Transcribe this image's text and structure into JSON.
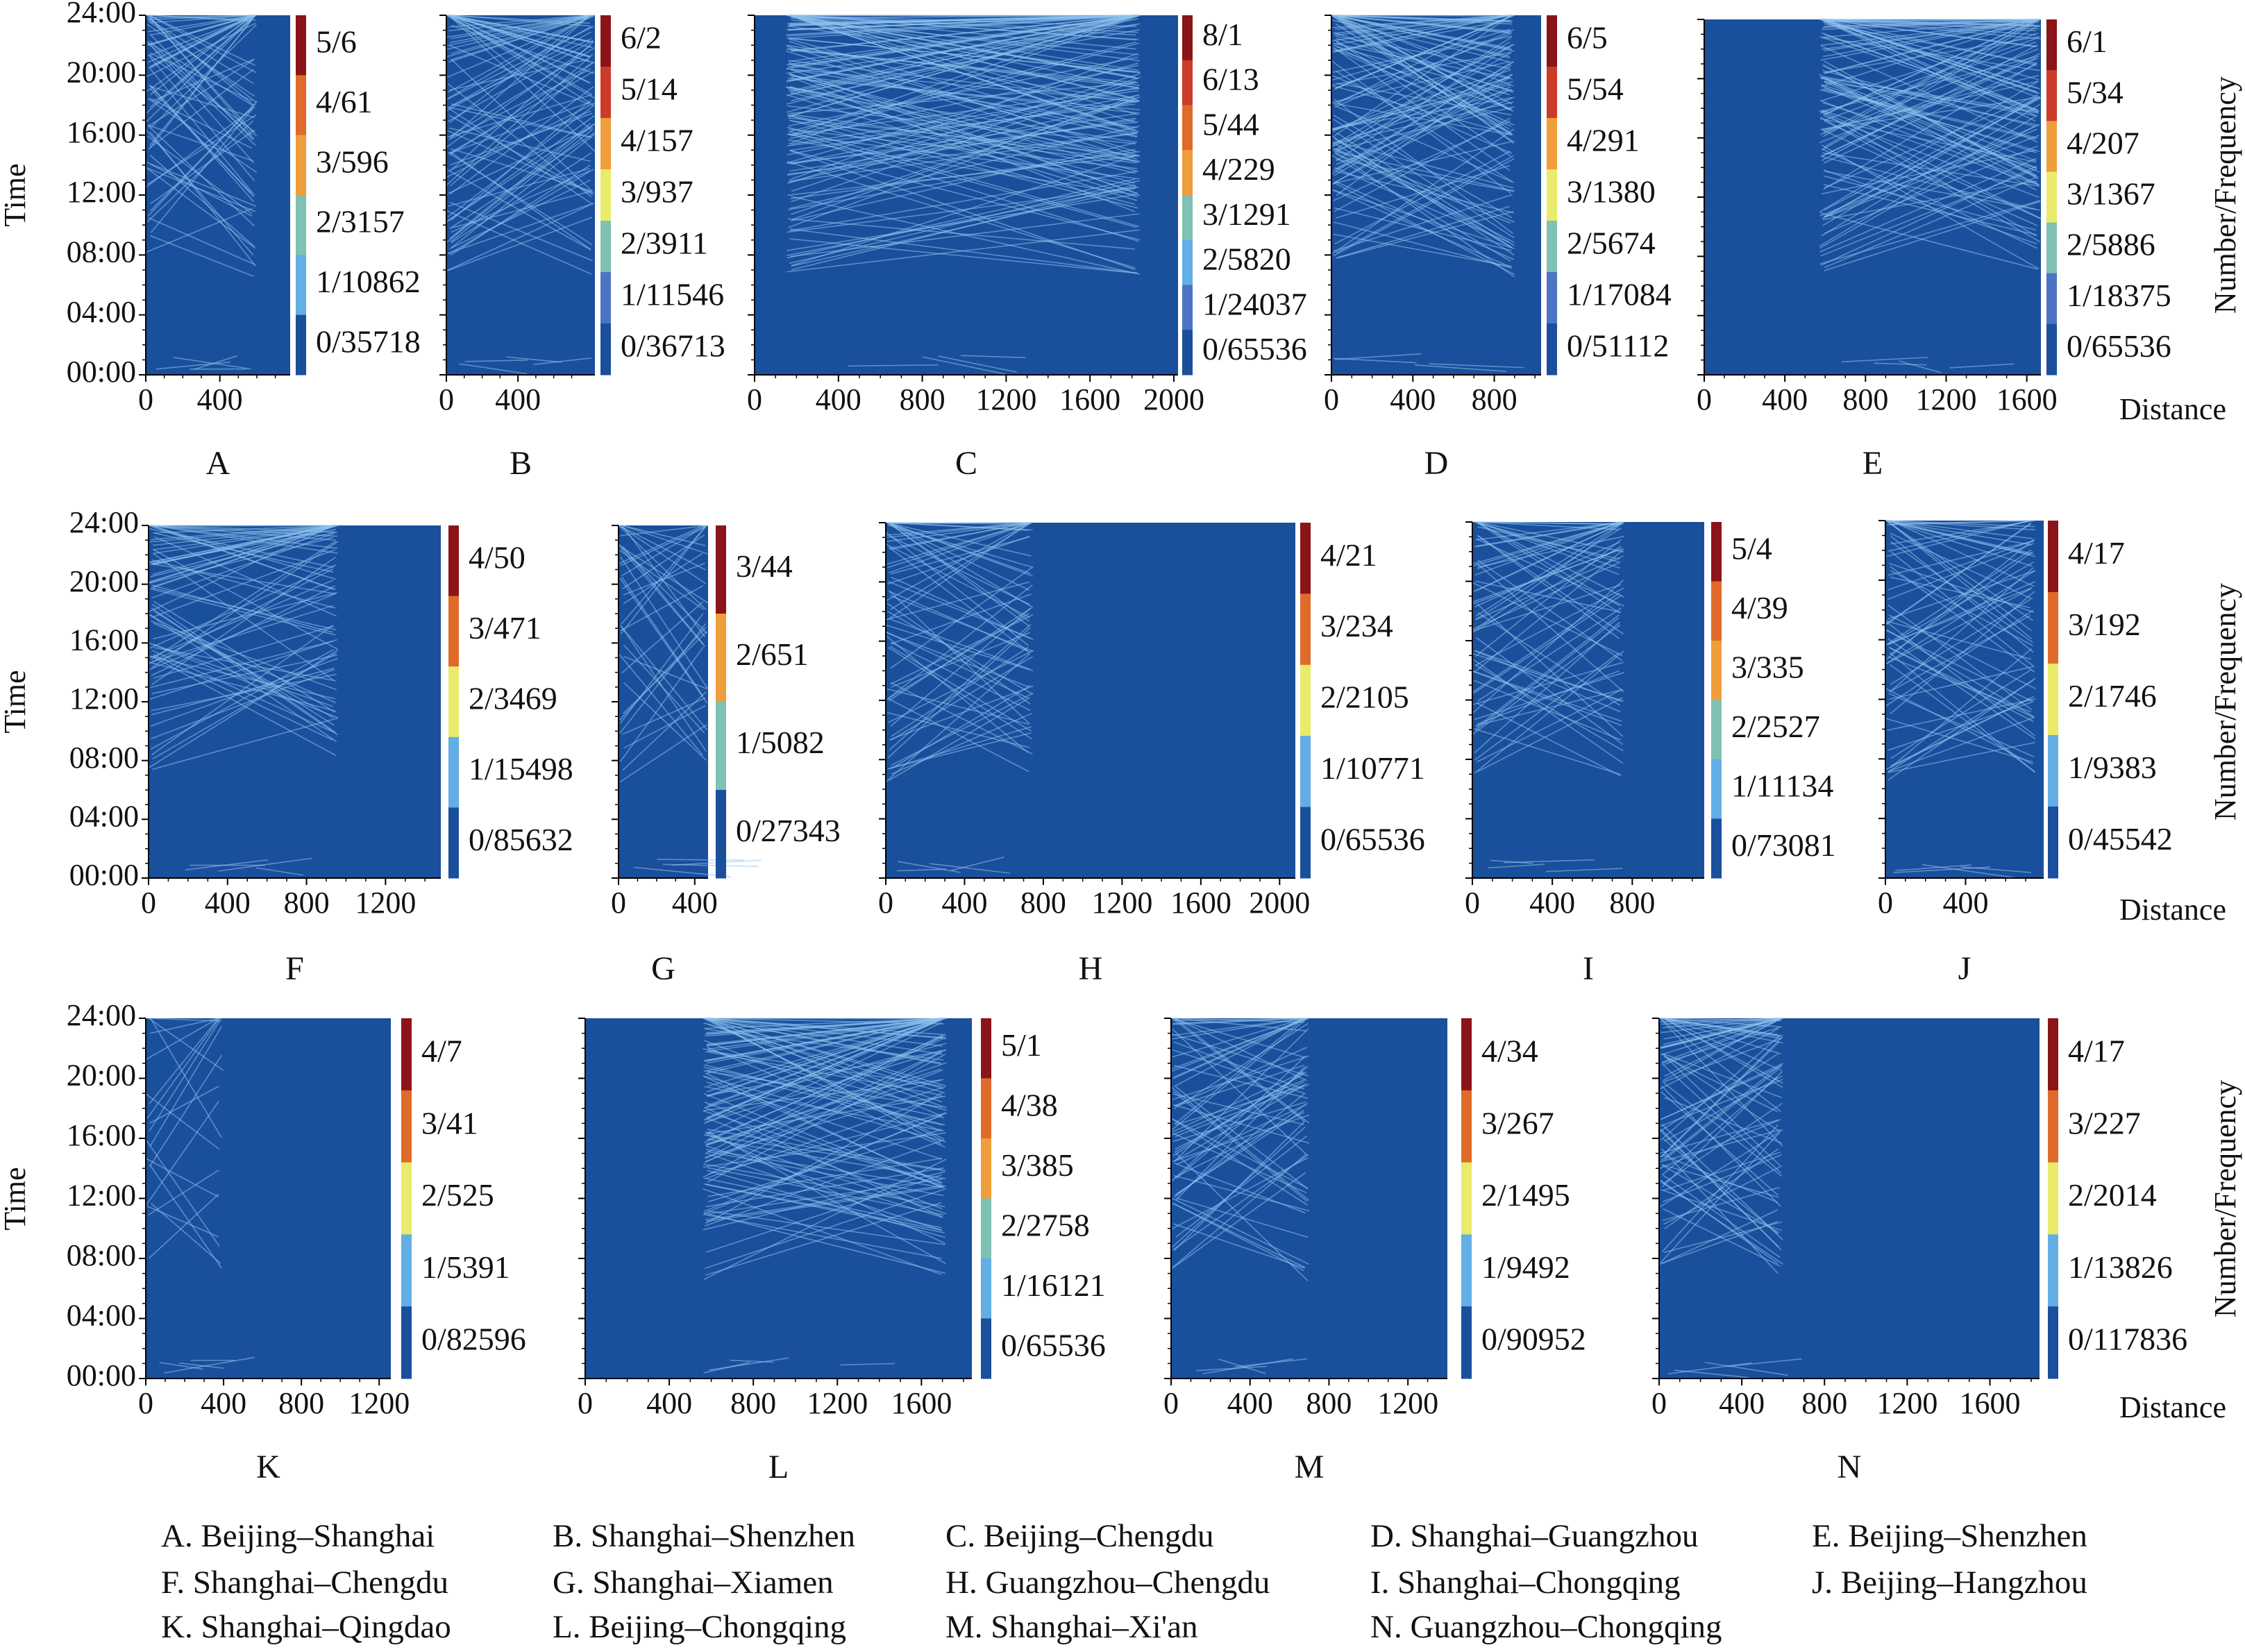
{
  "charts": {
    "y_axis_label": "Time",
    "colorbar_label": "Number/Frequency",
    "distance_label": "Distance",
    "y_ticks": [
      "24:00",
      "20:00",
      "16:00",
      "12:00",
      "08:00",
      "04:00",
      "00:00"
    ]
  },
  "colors": {
    "background": "#1a4f9c",
    "levels": [
      "#1a4f9c",
      "#4d73c3",
      "#62aee5",
      "#7fc1b2",
      "#e8ec6a",
      "#ef9e3b",
      "#e06a2a",
      "#cc3b2a",
      "#8b1419"
    ]
  },
  "chart_data": [
    {
      "type": "heatmap",
      "panel": "A",
      "route": "A. Beijing–Shanghai",
      "xlim": [
        0,
        780
      ],
      "x_ticks": [
        "0",
        "400"
      ],
      "colorbar": [
        "5/6",
        "4/61",
        "3/596",
        "2/3157",
        "1/10862",
        "0/35718"
      ]
    },
    {
      "type": "heatmap",
      "panel": "B",
      "route": "B. Shanghai–Shenzhen",
      "xlim": [
        0,
        830
      ],
      "x_ticks": [
        "0",
        "400"
      ],
      "colorbar": [
        "6/2",
        "5/14",
        "4/157",
        "3/937",
        "2/3911",
        "1/11546",
        "0/36713"
      ]
    },
    {
      "type": "heatmap",
      "panel": "C",
      "route": "C. Beijing–Chengdu",
      "xlim": [
        0,
        2020
      ],
      "x_ticks": [
        "0",
        "400",
        "800",
        "1200",
        "1600",
        "2000"
      ],
      "colorbar": [
        "8/1",
        "6/13",
        "5/44",
        "4/229",
        "3/1291",
        "2/5820",
        "1/24037",
        "0/65536"
      ]
    },
    {
      "type": "heatmap",
      "panel": "D",
      "route": "D. Shanghai–Guangzhou",
      "xlim": [
        0,
        1030
      ],
      "x_ticks": [
        "0",
        "400",
        "800"
      ],
      "colorbar": [
        "6/5",
        "5/54",
        "4/291",
        "3/1380",
        "2/5674",
        "1/17084",
        "0/51112"
      ]
    },
    {
      "type": "heatmap",
      "panel": "E",
      "route": "E. Beijing–Shenzhen",
      "xlim": [
        0,
        1670
      ],
      "x_ticks": [
        "0",
        "400",
        "800",
        "1200",
        "1600"
      ],
      "colorbar": [
        "6/1",
        "5/34",
        "4/207",
        "3/1367",
        "2/5886",
        "1/18375",
        "0/65536"
      ]
    },
    {
      "type": "heatmap",
      "panel": "F",
      "route": "F. Shanghai–Chengdu",
      "xlim": [
        0,
        1480
      ],
      "x_ticks": [
        "0",
        "400",
        "800",
        "1200"
      ],
      "colorbar": [
        "4/50",
        "3/471",
        "2/3469",
        "1/15498",
        "0/85632"
      ]
    },
    {
      "type": "heatmap",
      "panel": "G",
      "route": "G. Shanghai–Xiamen",
      "xlim": [
        0,
        470
      ],
      "x_ticks": [
        "0",
        "400"
      ],
      "colorbar": [
        "3/44",
        "2/651",
        "1/5082",
        "0/27343"
      ]
    },
    {
      "type": "heatmap",
      "panel": "H",
      "route": "H. Guangzhou–Chengdu",
      "xlim": [
        0,
        2080
      ],
      "x_ticks": [
        "0",
        "400",
        "800",
        "1200",
        "1600",
        "2000"
      ],
      "colorbar": [
        "4/21",
        "3/234",
        "2/2105",
        "1/10771",
        "0/65536"
      ]
    },
    {
      "type": "heatmap",
      "panel": "I",
      "route": "I. Shanghai–Chongqing",
      "xlim": [
        0,
        1160
      ],
      "x_ticks": [
        "0",
        "400",
        "800"
      ],
      "colorbar": [
        "5/4",
        "4/39",
        "3/335",
        "2/2527",
        "1/11134",
        "0/73081"
      ]
    },
    {
      "type": "heatmap",
      "panel": "J",
      "route": "J. Beijing–Hangzhou",
      "xlim": [
        0,
        790
      ],
      "x_ticks": [
        "0",
        "400"
      ],
      "colorbar": [
        "4/17",
        "3/192",
        "2/1746",
        "1/9383",
        "0/45542"
      ]
    },
    {
      "type": "heatmap",
      "panel": "K",
      "route": "K. Shanghai–Qingdao",
      "xlim": [
        0,
        1260
      ],
      "x_ticks": [
        "0",
        "400",
        "800",
        "1200"
      ],
      "colorbar": [
        "4/7",
        "3/41",
        "2/525",
        "1/5391",
        "0/82596"
      ]
    },
    {
      "type": "heatmap",
      "panel": "L",
      "route": "L. Beijing–Chongqing",
      "xlim": [
        0,
        1840
      ],
      "x_ticks": [
        "0",
        "400",
        "800",
        "1200",
        "1600"
      ],
      "colorbar": [
        "5/1",
        "4/38",
        "3/385",
        "2/2758",
        "1/16121",
        "0/65536"
      ]
    },
    {
      "type": "heatmap",
      "panel": "M",
      "route": "M. Shanghai–Xi'an",
      "xlim": [
        0,
        1400
      ],
      "x_ticks": [
        "0",
        "400",
        "800",
        "1200"
      ],
      "colorbar": [
        "4/34",
        "3/267",
        "2/1495",
        "1/9492",
        "0/90952"
      ]
    },
    {
      "type": "heatmap",
      "panel": "N",
      "route": "N. Guangzhou–Chongqing",
      "xlim": [
        0,
        1840
      ],
      "x_ticks": [
        "0",
        "400",
        "800",
        "1200",
        "1600"
      ],
      "colorbar": [
        "4/17",
        "3/227",
        "2/2014",
        "1/13826",
        "0/117836"
      ]
    }
  ]
}
